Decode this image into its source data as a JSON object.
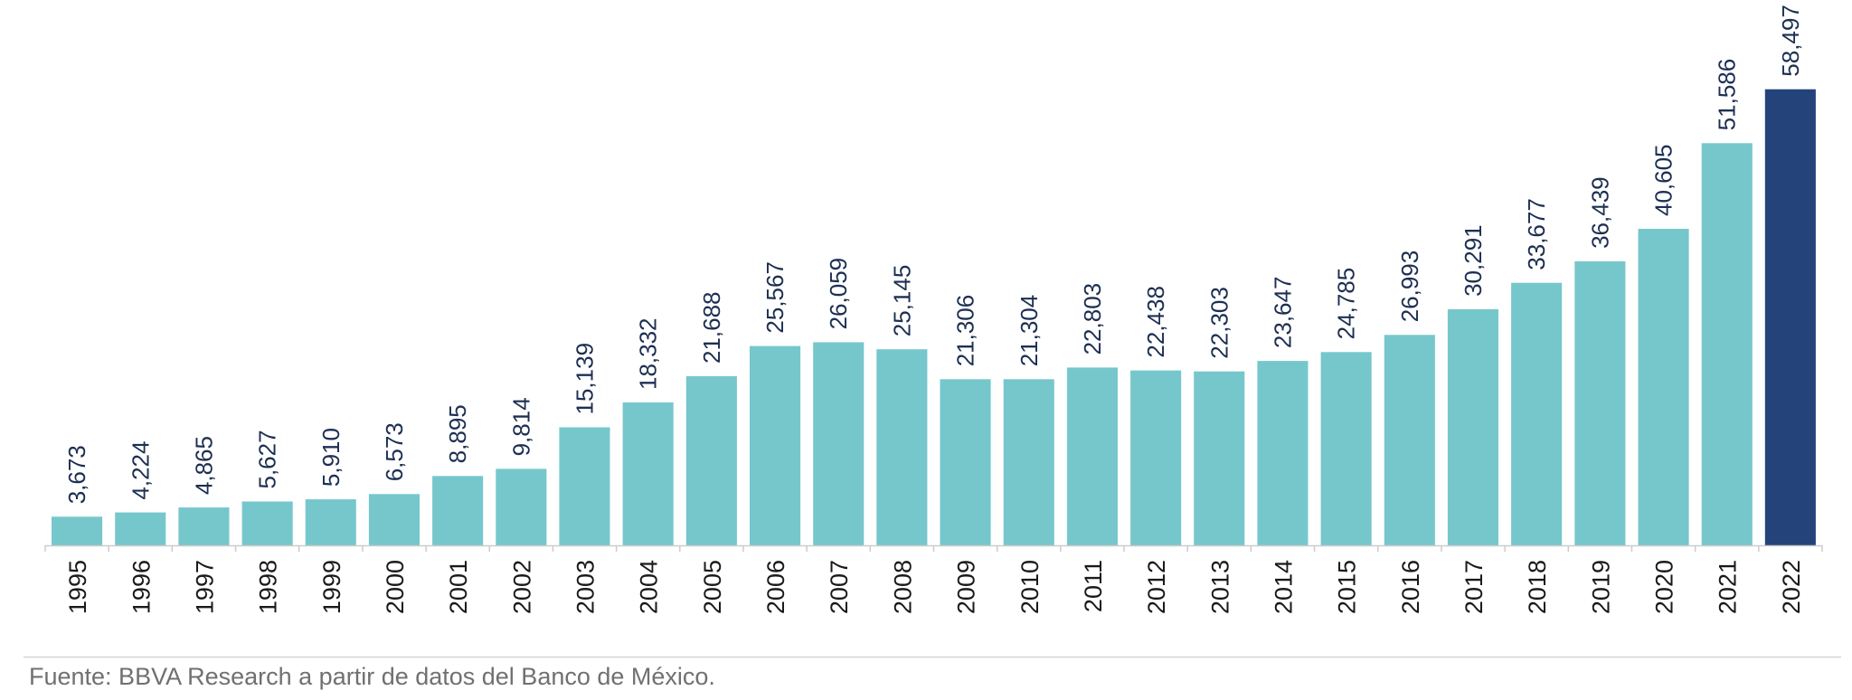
{
  "chart_data": {
    "type": "bar",
    "categories": [
      "1995",
      "1996",
      "1997",
      "1998",
      "1999",
      "2000",
      "2001",
      "2002",
      "2003",
      "2004",
      "2005",
      "2006",
      "2007",
      "2008",
      "2009",
      "2010",
      "2011",
      "2012",
      "2013",
      "2014",
      "2015",
      "2016",
      "2017",
      "2018",
      "2019",
      "2020",
      "2021",
      "2022"
    ],
    "values": [
      3673,
      4224,
      4865,
      5627,
      5910,
      6573,
      8895,
      9814,
      15139,
      18332,
      21688,
      25567,
      26059,
      25145,
      21306,
      21304,
      22803,
      22438,
      22303,
      23647,
      24785,
      26993,
      30291,
      33677,
      36439,
      40605,
      51586,
      58497
    ],
    "value_labels": [
      "3,673",
      "4,224",
      "4,865",
      "5,627",
      "5,910",
      "6,573",
      "8,895",
      "9,814",
      "15,139",
      "18,332",
      "21,688",
      "25,567",
      "26,059",
      "25,145",
      "21,306",
      "21,304",
      "22,803",
      "22,438",
      "22,303",
      "23,647",
      "24,785",
      "26,993",
      "30,291",
      "33,677",
      "36,439",
      "40,605",
      "51,586",
      "58,497"
    ],
    "highlight_category": "2022",
    "title": "",
    "xlabel": "",
    "ylabel": "",
    "ylim": [
      0,
      60000
    ],
    "grid": false,
    "legend": "none",
    "colors": {
      "bar": "#76c7cc",
      "highlight": "#24437a",
      "value_label": "#1d2f52",
      "axis": "#cccccc"
    }
  },
  "source": "Fuente: BBVA Research a partir de datos del Banco de México."
}
